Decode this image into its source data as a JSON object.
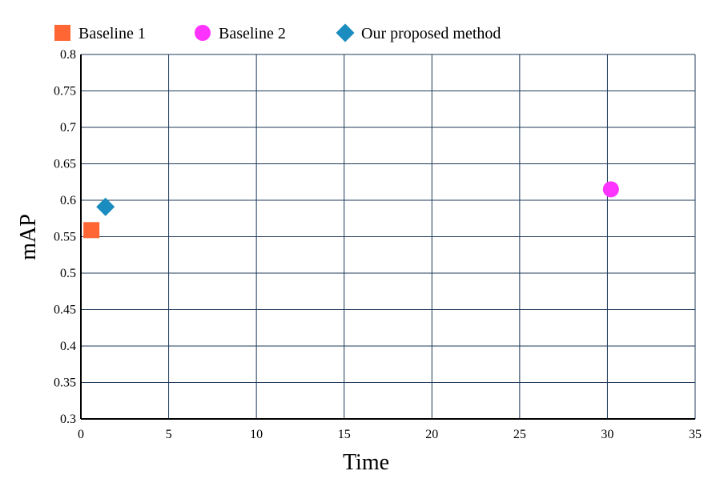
{
  "chart_data": {
    "type": "scatter",
    "title": "",
    "xlabel": "Time",
    "ylabel": "mAP",
    "xlim": [
      0,
      35
    ],
    "ylim": [
      0.3,
      0.8
    ],
    "xticks": [
      "0",
      "5",
      "10",
      "15",
      "20",
      "25",
      "30",
      "35"
    ],
    "yticks": [
      "0.3",
      "0.35",
      "0.4",
      "0.45",
      "0.5",
      "0.55",
      "0.6",
      "0.65",
      "0.7",
      "0.75",
      "0.8"
    ],
    "grid": true,
    "legend_position": "top",
    "series": [
      {
        "name": "Baseline 1",
        "marker": "square",
        "color": "#ff6633",
        "points": [
          {
            "x": 0.6,
            "y": 0.559
          }
        ]
      },
      {
        "name": "Baseline 2",
        "marker": "circle",
        "color": "#ff33ff",
        "points": [
          {
            "x": 30.2,
            "y": 0.615
          }
        ]
      },
      {
        "name": "Our proposed method",
        "marker": "diamond",
        "color": "#1a8cbf",
        "points": [
          {
            "x": 1.4,
            "y": 0.591
          }
        ]
      }
    ],
    "colors": {
      "grid": "#1f3a5a",
      "axis": "#000000"
    }
  }
}
